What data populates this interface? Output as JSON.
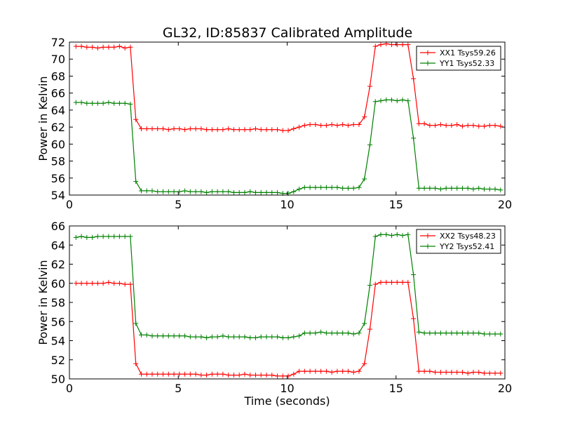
{
  "title": "GL32, ID:85837 Calibrated Amplitude",
  "chart_data": [
    {
      "type": "line",
      "title": "GL32, ID:85837 Calibrated Amplitude",
      "xlabel": "",
      "ylabel": "Power in Kelvin",
      "xlim": [
        0,
        20
      ],
      "ylim": [
        54,
        72
      ],
      "xticks": [
        "0",
        "5",
        "10",
        "15",
        "20"
      ],
      "yticks": [
        "54",
        "56",
        "58",
        "60",
        "62",
        "64",
        "66",
        "68",
        "70",
        "72"
      ],
      "grid": false,
      "legend_position": "top-right",
      "x": [
        0.3,
        0.55,
        0.8,
        1.05,
        1.3,
        1.55,
        1.8,
        2.05,
        2.3,
        2.55,
        2.8,
        3.05,
        3.3,
        3.55,
        3.8,
        4.05,
        4.3,
        4.55,
        4.8,
        5.05,
        5.3,
        5.55,
        5.8,
        6.05,
        6.3,
        6.55,
        6.8,
        7.05,
        7.3,
        7.55,
        7.8,
        8.05,
        8.3,
        8.55,
        8.8,
        9.05,
        9.3,
        9.55,
        9.8,
        10.05,
        10.3,
        10.55,
        10.8,
        11.05,
        11.3,
        11.55,
        11.8,
        12.05,
        12.3,
        12.55,
        12.8,
        13.05,
        13.3,
        13.55,
        13.8,
        14.05,
        14.3,
        14.55,
        14.8,
        15.05,
        15.3,
        15.55,
        15.8,
        16.05,
        16.3,
        16.55,
        16.8,
        17.05,
        17.3,
        17.55,
        17.8,
        18.05,
        18.3,
        18.55,
        18.8,
        19.05,
        19.3,
        19.55,
        19.8
      ],
      "series": [
        {
          "name": "XX1 Tsys59.26",
          "color": "#ff0000",
          "values": [
            71.5,
            71.5,
            71.4,
            71.4,
            71.3,
            71.4,
            71.4,
            71.4,
            71.5,
            71.3,
            71.4,
            62.9,
            61.8,
            61.8,
            61.8,
            61.8,
            61.8,
            61.7,
            61.8,
            61.8,
            61.7,
            61.8,
            61.8,
            61.8,
            61.7,
            61.7,
            61.7,
            61.7,
            61.8,
            61.7,
            61.7,
            61.7,
            61.7,
            61.8,
            61.7,
            61.7,
            61.7,
            61.7,
            61.6,
            61.6,
            61.8,
            62.0,
            62.2,
            62.3,
            62.3,
            62.2,
            62.2,
            62.3,
            62.2,
            62.3,
            62.2,
            62.3,
            62.3,
            63.2,
            66.8,
            71.5,
            71.7,
            71.8,
            71.7,
            71.7,
            71.7,
            71.7,
            67.7,
            62.4,
            62.4,
            62.2,
            62.2,
            62.3,
            62.2,
            62.2,
            62.3,
            62.1,
            62.2,
            62.2,
            62.1,
            62.1,
            62.2,
            62.2,
            62.1
          ]
        },
        {
          "name": "YY1 Tsys52.33",
          "color": "#008000",
          "values": [
            64.9,
            64.9,
            64.8,
            64.8,
            64.8,
            64.8,
            64.9,
            64.8,
            64.8,
            64.8,
            64.7,
            55.6,
            54.5,
            54.5,
            54.5,
            54.4,
            54.4,
            54.4,
            54.4,
            54.4,
            54.5,
            54.4,
            54.4,
            54.4,
            54.3,
            54.4,
            54.4,
            54.4,
            54.4,
            54.3,
            54.3,
            54.3,
            54.4,
            54.3,
            54.3,
            54.3,
            54.3,
            54.3,
            54.2,
            54.2,
            54.4,
            54.7,
            54.9,
            54.9,
            54.9,
            54.9,
            54.9,
            54.9,
            54.9,
            54.8,
            54.8,
            54.8,
            54.9,
            55.9,
            59.9,
            65.0,
            65.1,
            65.2,
            65.2,
            65.1,
            65.2,
            65.1,
            60.7,
            54.8,
            54.8,
            54.8,
            54.8,
            54.7,
            54.8,
            54.8,
            54.8,
            54.8,
            54.8,
            54.7,
            54.8,
            54.7,
            54.7,
            54.7,
            54.6
          ]
        }
      ]
    },
    {
      "type": "line",
      "title": "",
      "xlabel": "Time (seconds)",
      "ylabel": "Power in Kelvin",
      "xlim": [
        0,
        20
      ],
      "ylim": [
        50,
        66
      ],
      "xticks": [
        "0",
        "5",
        "10",
        "15",
        "20"
      ],
      "yticks": [
        "50",
        "52",
        "54",
        "56",
        "58",
        "60",
        "62",
        "64",
        "66"
      ],
      "grid": false,
      "legend_position": "top-right",
      "x": [
        0.3,
        0.55,
        0.8,
        1.05,
        1.3,
        1.55,
        1.8,
        2.05,
        2.3,
        2.55,
        2.8,
        3.05,
        3.3,
        3.55,
        3.8,
        4.05,
        4.3,
        4.55,
        4.8,
        5.05,
        5.3,
        5.55,
        5.8,
        6.05,
        6.3,
        6.55,
        6.8,
        7.05,
        7.3,
        7.55,
        7.8,
        8.05,
        8.3,
        8.55,
        8.8,
        9.05,
        9.3,
        9.55,
        9.8,
        10.05,
        10.3,
        10.55,
        10.8,
        11.05,
        11.3,
        11.55,
        11.8,
        12.05,
        12.3,
        12.55,
        12.8,
        13.05,
        13.3,
        13.55,
        13.8,
        14.05,
        14.3,
        14.55,
        14.8,
        15.05,
        15.3,
        15.55,
        15.8,
        16.05,
        16.3,
        16.55,
        16.8,
        17.05,
        17.3,
        17.55,
        17.8,
        18.05,
        18.3,
        18.55,
        18.8,
        19.05,
        19.3,
        19.55,
        19.8
      ],
      "series": [
        {
          "name": "XX2 Tsys48.23",
          "color": "#ff0000",
          "values": [
            60.0,
            60.0,
            60.0,
            60.0,
            60.0,
            60.0,
            60.1,
            60.0,
            60.0,
            59.9,
            59.9,
            51.6,
            50.5,
            50.5,
            50.5,
            50.5,
            50.5,
            50.5,
            50.5,
            50.5,
            50.5,
            50.5,
            50.5,
            50.4,
            50.4,
            50.5,
            50.5,
            50.5,
            50.4,
            50.4,
            50.4,
            50.5,
            50.4,
            50.4,
            50.4,
            50.4,
            50.4,
            50.3,
            50.3,
            50.3,
            50.5,
            50.8,
            50.8,
            50.8,
            50.8,
            50.8,
            50.8,
            50.7,
            50.8,
            50.8,
            50.8,
            50.7,
            50.8,
            51.6,
            55.2,
            59.9,
            60.1,
            60.1,
            60.1,
            60.1,
            60.1,
            60.1,
            56.3,
            50.8,
            50.8,
            50.8,
            50.7,
            50.7,
            50.7,
            50.7,
            50.7,
            50.7,
            50.6,
            50.7,
            50.7,
            50.6,
            50.6,
            50.6,
            50.6
          ]
        },
        {
          "name": "YY2 Tsys52.41",
          "color": "#008000",
          "values": [
            64.8,
            64.9,
            64.8,
            64.8,
            64.9,
            64.9,
            64.9,
            64.9,
            64.9,
            64.9,
            64.9,
            55.8,
            54.6,
            54.6,
            54.5,
            54.5,
            54.5,
            54.5,
            54.5,
            54.5,
            54.5,
            54.4,
            54.4,
            54.4,
            54.3,
            54.4,
            54.4,
            54.5,
            54.4,
            54.4,
            54.4,
            54.4,
            54.3,
            54.3,
            54.4,
            54.4,
            54.4,
            54.4,
            54.3,
            54.3,
            54.4,
            54.5,
            54.8,
            54.8,
            54.8,
            54.9,
            54.8,
            54.8,
            54.8,
            54.8,
            54.8,
            54.7,
            54.8,
            55.8,
            59.8,
            64.9,
            65.1,
            65.1,
            65.0,
            65.1,
            65.0,
            65.1,
            60.9,
            54.9,
            54.8,
            54.8,
            54.8,
            54.8,
            54.8,
            54.8,
            54.8,
            54.8,
            54.8,
            54.8,
            54.8,
            54.7,
            54.7,
            54.7,
            54.7
          ]
        }
      ]
    }
  ]
}
